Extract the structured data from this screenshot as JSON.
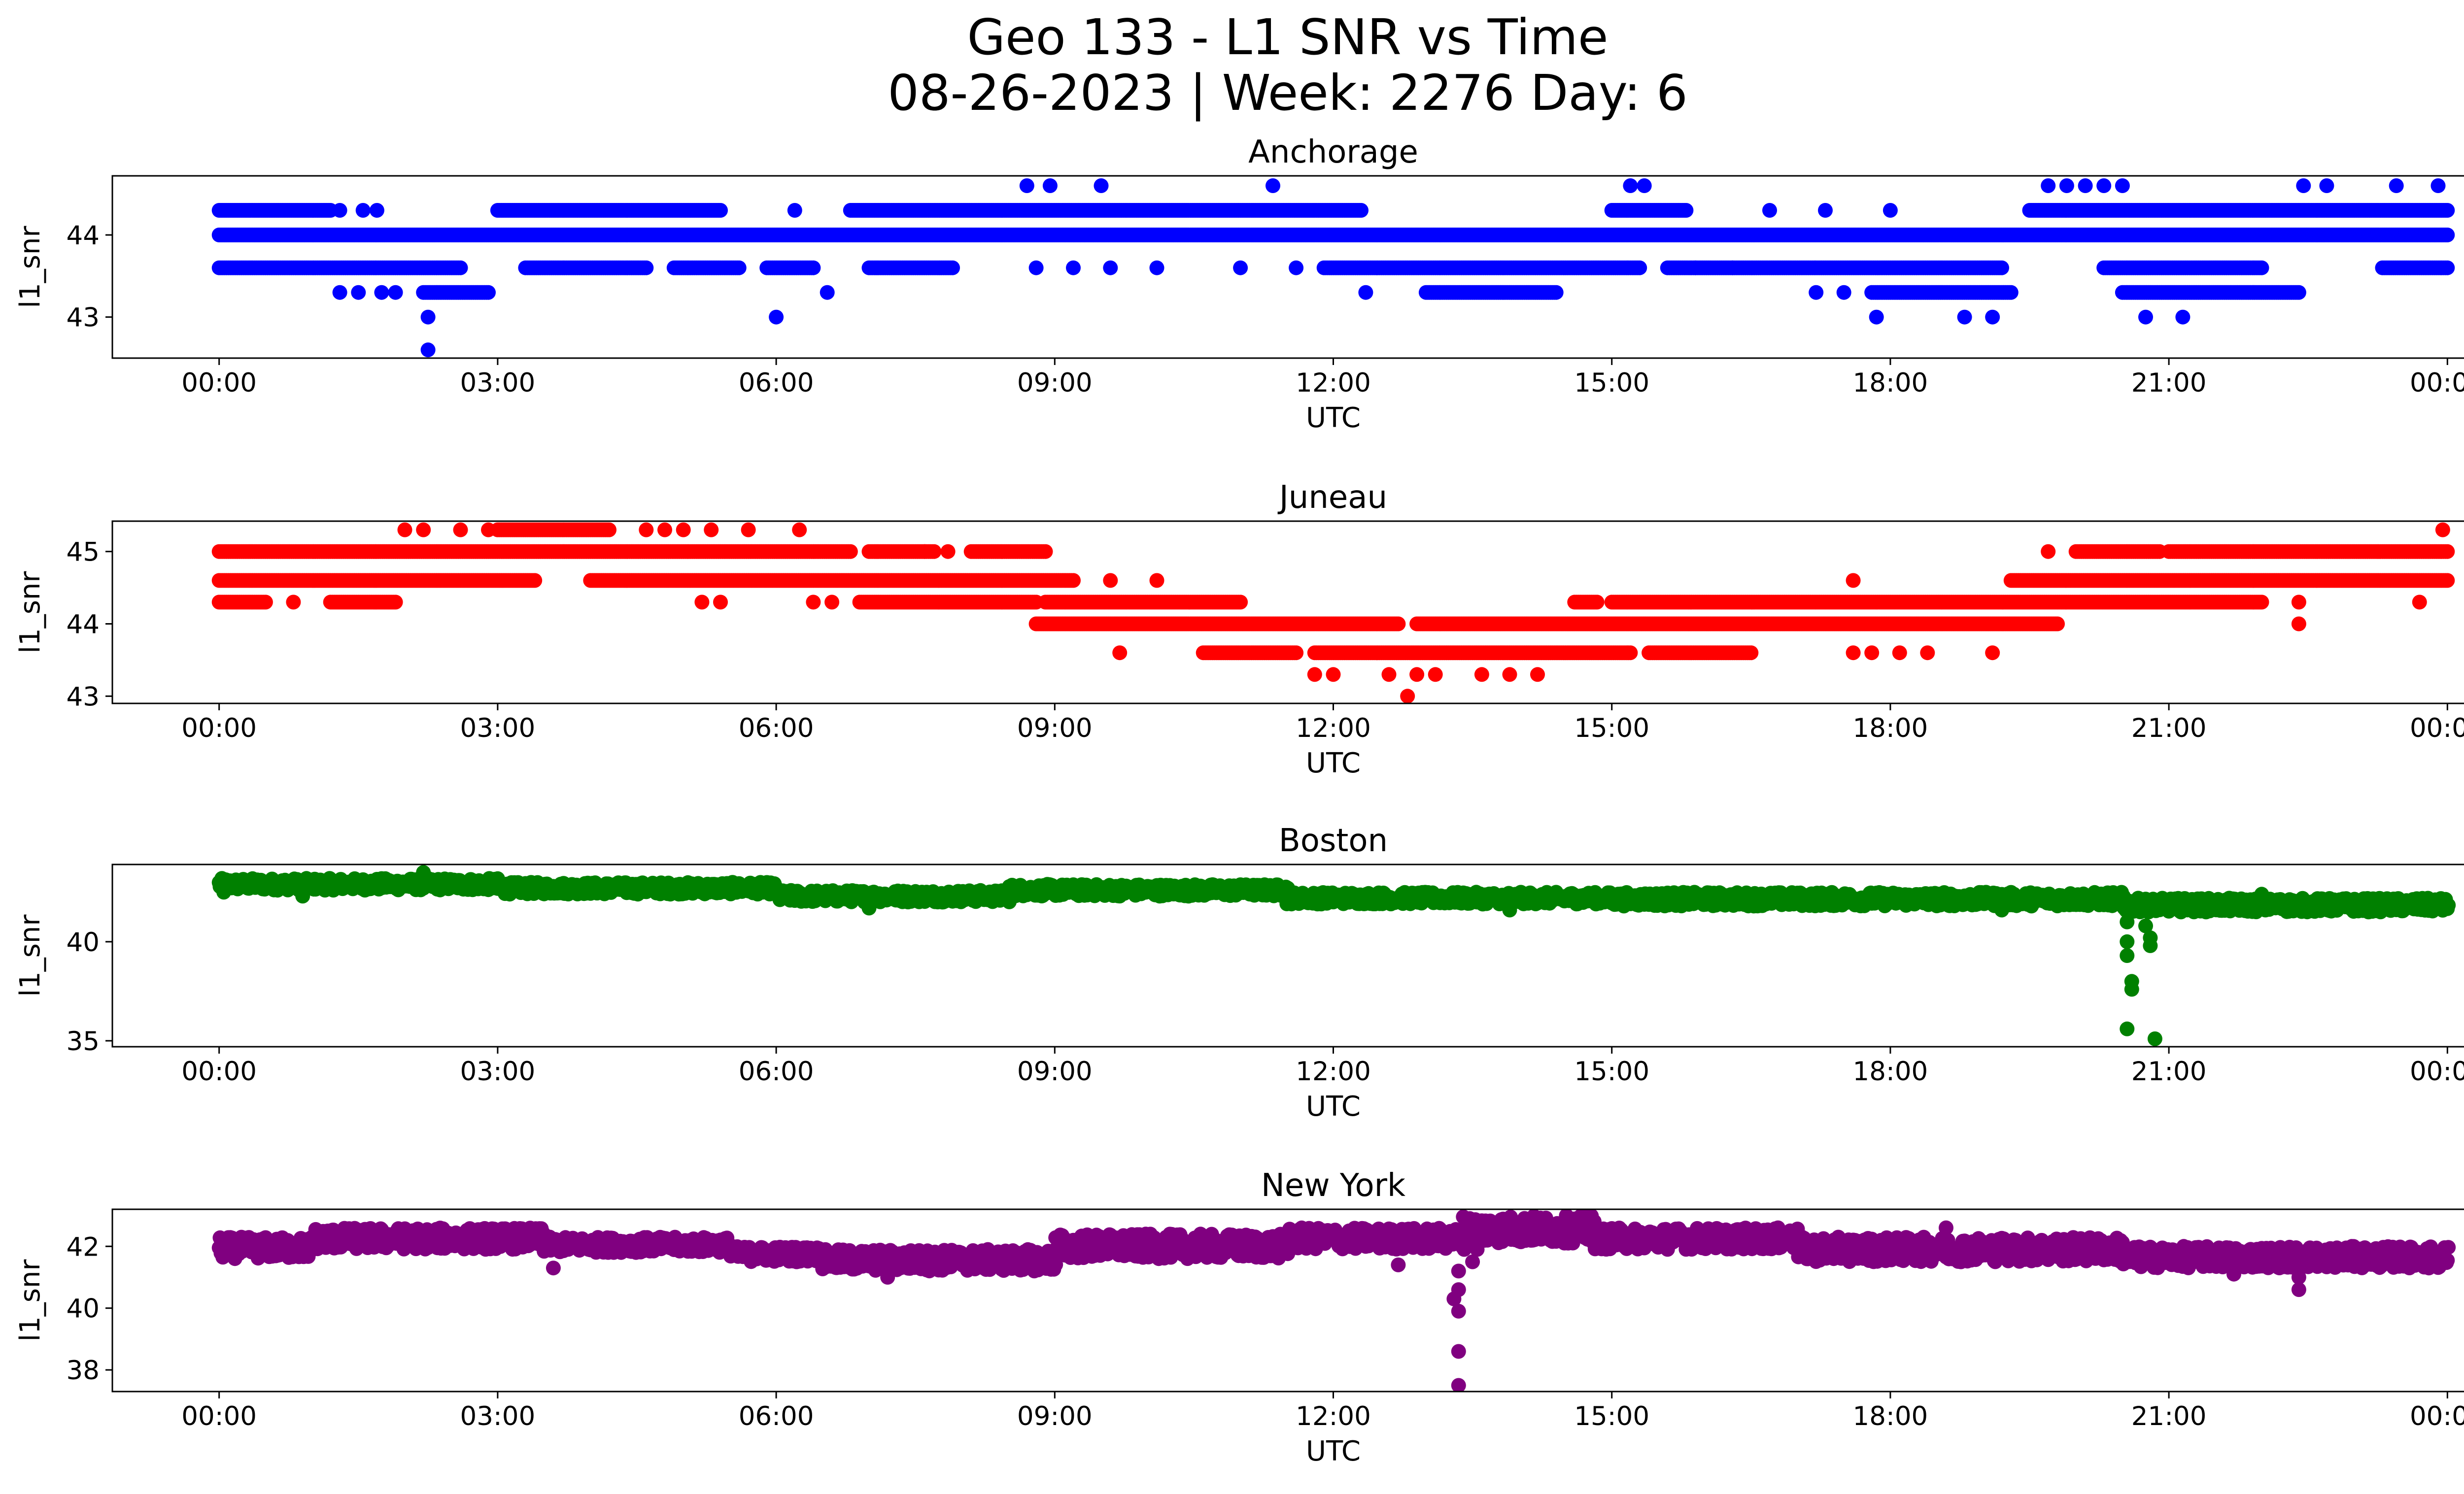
{
  "figure": {
    "title_line1": "Geo 133 - L1 SNR vs Time",
    "title_line2": "08-26-2023 | Week: 2276 Day: 6"
  },
  "chart_data": [
    {
      "type": "scatter",
      "title": "Anchorage",
      "xlabel": "UTC",
      "ylabel": "l1_snr",
      "color": "#0000ff",
      "xticks": [
        "00:00",
        "03:00",
        "06:00",
        "09:00",
        "12:00",
        "15:00",
        "18:00",
        "21:00",
        "00:00"
      ],
      "yticks": [
        43,
        44
      ],
      "ylim": [
        42.5,
        44.72
      ],
      "xlim_hours": [
        -1.15,
        25.15
      ],
      "segments": [
        {
          "y": 44.0,
          "x": [
            [
              0.0,
              24.0
            ]
          ]
        },
        {
          "y": 43.6,
          "x": [
            [
              0.0,
              2.6
            ],
            [
              3.3,
              4.6
            ],
            [
              4.9,
              5.6
            ],
            [
              5.9,
              6.4
            ],
            [
              7.0,
              7.9
            ],
            [
              11.9,
              15.3
            ],
            [
              15.6,
              19.2
            ],
            [
              20.3,
              22.0
            ],
            [
              23.3,
              24.0
            ]
          ]
        },
        {
          "y": 44.3,
          "x": [
            [
              0.0,
              1.2
            ],
            [
              3.0,
              5.4
            ],
            [
              6.8,
              12.3
            ],
            [
              15.0,
              15.8
            ],
            [
              19.5,
              24.0
            ]
          ]
        },
        {
          "y": 43.3,
          "x": [
            [
              2.2,
              2.9
            ],
            [
              13.0,
              14.4
            ],
            [
              17.8,
              19.3
            ],
            [
              20.5,
              22.4
            ]
          ]
        }
      ],
      "points": [
        {
          "x": 1.3,
          "y": 43.3
        },
        {
          "x": 1.5,
          "y": 43.3
        },
        {
          "x": 1.75,
          "y": 43.3
        },
        {
          "x": 1.9,
          "y": 43.3
        },
        {
          "x": 2.25,
          "y": 43.0
        },
        {
          "x": 2.25,
          "y": 42.6
        },
        {
          "x": 6.0,
          "y": 43.0
        },
        {
          "x": 6.55,
          "y": 43.3
        },
        {
          "x": 1.3,
          "y": 44.3
        },
        {
          "x": 1.55,
          "y": 44.3
        },
        {
          "x": 1.7,
          "y": 44.3
        },
        {
          "x": 6.2,
          "y": 44.3
        },
        {
          "x": 8.7,
          "y": 44.6
        },
        {
          "x": 8.95,
          "y": 44.6
        },
        {
          "x": 9.5,
          "y": 44.6
        },
        {
          "x": 11.35,
          "y": 44.6
        },
        {
          "x": 15.2,
          "y": 44.6
        },
        {
          "x": 15.35,
          "y": 44.6
        },
        {
          "x": 19.7,
          "y": 44.6
        },
        {
          "x": 19.9,
          "y": 44.6
        },
        {
          "x": 20.1,
          "y": 44.6
        },
        {
          "x": 20.3,
          "y": 44.6
        },
        {
          "x": 20.5,
          "y": 44.6
        },
        {
          "x": 22.45,
          "y": 44.6
        },
        {
          "x": 22.7,
          "y": 44.6
        },
        {
          "x": 23.45,
          "y": 44.6
        },
        {
          "x": 23.9,
          "y": 44.6
        },
        {
          "x": 8.8,
          "y": 43.6
        },
        {
          "x": 9.2,
          "y": 43.6
        },
        {
          "x": 9.6,
          "y": 43.6
        },
        {
          "x": 10.1,
          "y": 43.6
        },
        {
          "x": 11.0,
          "y": 43.6
        },
        {
          "x": 11.6,
          "y": 43.6
        },
        {
          "x": 12.35,
          "y": 43.3
        },
        {
          "x": 15.9,
          "y": 43.6
        },
        {
          "x": 16.3,
          "y": 43.6
        },
        {
          "x": 17.2,
          "y": 43.3
        },
        {
          "x": 17.5,
          "y": 43.3
        },
        {
          "x": 17.85,
          "y": 43.0
        },
        {
          "x": 18.8,
          "y": 43.0
        },
        {
          "x": 19.1,
          "y": 43.0
        },
        {
          "x": 18.0,
          "y": 44.3
        },
        {
          "x": 20.75,
          "y": 43.0
        },
        {
          "x": 21.15,
          "y": 43.0
        },
        {
          "x": 16.7,
          "y": 44.3
        },
        {
          "x": 17.3,
          "y": 44.3
        }
      ]
    },
    {
      "type": "scatter",
      "title": "Juneau",
      "xlabel": "UTC",
      "ylabel": "l1_snr",
      "color": "#ff0000",
      "xticks": [
        "00:00",
        "03:00",
        "06:00",
        "09:00",
        "12:00",
        "15:00",
        "18:00",
        "21:00",
        "00:00"
      ],
      "yticks": [
        43,
        44,
        45
      ],
      "ylim": [
        42.9,
        45.42
      ],
      "xlim_hours": [
        -1.15,
        25.15
      ],
      "segments": [
        {
          "y": 45.0,
          "x": [
            [
              0.0,
              6.8
            ],
            [
              7.0,
              7.7
            ],
            [
              8.1,
              8.9
            ],
            [
              20.0,
              20.9
            ],
            [
              21.0,
              24.0
            ]
          ]
        },
        {
          "y": 44.6,
          "x": [
            [
              0.0,
              3.4
            ],
            [
              4.0,
              9.2
            ],
            [
              19.3,
              24.0
            ]
          ]
        },
        {
          "y": 44.3,
          "x": [
            [
              0.0,
              0.5
            ],
            [
              1.2,
              1.9
            ],
            [
              6.9,
              8.8
            ],
            [
              8.9,
              11.0
            ],
            [
              14.6,
              14.85
            ],
            [
              15.0,
              22.0
            ]
          ]
        },
        {
          "y": 44.0,
          "x": [
            [
              8.8,
              12.7
            ],
            [
              12.9,
              19.8
            ]
          ]
        },
        {
          "y": 43.6,
          "x": [
            [
              10.6,
              11.6
            ],
            [
              11.8,
              15.2
            ],
            [
              15.4,
              16.5
            ]
          ]
        },
        {
          "y": 45.3,
          "x": [
            [
              3.0,
              4.2
            ]
          ]
        }
      ],
      "points": [
        {
          "x": 2.0,
          "y": 45.3
        },
        {
          "x": 2.2,
          "y": 45.3
        },
        {
          "x": 2.6,
          "y": 45.3
        },
        {
          "x": 2.9,
          "y": 45.3
        },
        {
          "x": 4.6,
          "y": 45.3
        },
        {
          "x": 4.8,
          "y": 45.3
        },
        {
          "x": 5.0,
          "y": 45.3
        },
        {
          "x": 5.3,
          "y": 45.3
        },
        {
          "x": 5.7,
          "y": 45.3
        },
        {
          "x": 6.25,
          "y": 45.3
        },
        {
          "x": 7.6,
          "y": 45.0
        },
        {
          "x": 7.85,
          "y": 45.0
        },
        {
          "x": 0.8,
          "y": 44.3
        },
        {
          "x": 5.2,
          "y": 44.3
        },
        {
          "x": 5.4,
          "y": 44.3
        },
        {
          "x": 6.4,
          "y": 44.3
        },
        {
          "x": 6.6,
          "y": 44.3
        },
        {
          "x": 9.6,
          "y": 44.6
        },
        {
          "x": 10.1,
          "y": 44.6
        },
        {
          "x": 9.7,
          "y": 43.6
        },
        {
          "x": 11.8,
          "y": 43.3
        },
        {
          "x": 12.0,
          "y": 43.3
        },
        {
          "x": 12.6,
          "y": 43.3
        },
        {
          "x": 12.9,
          "y": 43.3
        },
        {
          "x": 13.1,
          "y": 43.3
        },
        {
          "x": 13.6,
          "y": 43.3
        },
        {
          "x": 13.9,
          "y": 43.3
        },
        {
          "x": 14.2,
          "y": 43.3
        },
        {
          "x": 12.8,
          "y": 43.0
        },
        {
          "x": 17.6,
          "y": 44.6
        },
        {
          "x": 17.6,
          "y": 43.6
        },
        {
          "x": 17.8,
          "y": 43.6
        },
        {
          "x": 18.1,
          "y": 43.6
        },
        {
          "x": 18.4,
          "y": 43.6
        },
        {
          "x": 19.1,
          "y": 43.6
        },
        {
          "x": 19.7,
          "y": 45.0
        },
        {
          "x": 22.4,
          "y": 44.3
        },
        {
          "x": 22.4,
          "y": 44.0
        },
        {
          "x": 23.7,
          "y": 44.3
        },
        {
          "x": 23.95,
          "y": 45.3
        }
      ]
    },
    {
      "type": "scatter",
      "title": "Boston",
      "xlabel": "UTC",
      "ylabel": "l1_snr",
      "color": "#008000",
      "xticks": [
        "00:00",
        "03:00",
        "06:00",
        "09:00",
        "12:00",
        "15:00",
        "18:00",
        "21:00",
        "00:00"
      ],
      "yticks": [
        35,
        40
      ],
      "ylim": [
        34.7,
        43.9
      ],
      "xlim_hours": [
        -1.15,
        25.15
      ],
      "bands": [
        {
          "x": [
            0.0,
            3.0
          ],
          "y": [
            42.6,
            43.2
          ]
        },
        {
          "x": [
            3.0,
            6.0
          ],
          "y": [
            42.4,
            43.0
          ]
        },
        {
          "x": [
            6.0,
            8.5
          ],
          "y": [
            42.0,
            42.6
          ]
        },
        {
          "x": [
            8.5,
            11.5
          ],
          "y": [
            42.3,
            42.9
          ]
        },
        {
          "x": [
            11.5,
            15.0
          ],
          "y": [
            41.9,
            42.5
          ]
        },
        {
          "x": [
            15.0,
            20.5
          ],
          "y": [
            41.8,
            42.5
          ]
        },
        {
          "x": [
            20.5,
            24.0
          ],
          "y": [
            41.5,
            42.2
          ]
        }
      ],
      "points": [
        {
          "x": 20.55,
          "y": 41.0
        },
        {
          "x": 20.55,
          "y": 40.0
        },
        {
          "x": 20.55,
          "y": 39.3
        },
        {
          "x": 20.6,
          "y": 38.0
        },
        {
          "x": 20.6,
          "y": 37.6
        },
        {
          "x": 20.55,
          "y": 35.6
        },
        {
          "x": 20.8,
          "y": 40.2
        },
        {
          "x": 20.8,
          "y": 39.8
        },
        {
          "x": 20.85,
          "y": 35.1
        },
        {
          "x": 20.75,
          "y": 40.8
        },
        {
          "x": 2.2,
          "y": 43.5
        },
        {
          "x": 0.05,
          "y": 42.5
        },
        {
          "x": 0.9,
          "y": 42.3
        },
        {
          "x": 7.0,
          "y": 41.7
        },
        {
          "x": 13.9,
          "y": 41.6
        },
        {
          "x": 19.2,
          "y": 41.6
        },
        {
          "x": 22.0,
          "y": 42.4
        }
      ]
    },
    {
      "type": "scatter",
      "title": "New York",
      "xlabel": "UTC",
      "ylabel": "l1_snr",
      "color": "#800080",
      "xticks": [
        "00:00",
        "03:00",
        "06:00",
        "09:00",
        "12:00",
        "15:00",
        "18:00",
        "21:00",
        "00:00"
      ],
      "yticks": [
        38,
        40,
        42
      ],
      "ylim": [
        37.3,
        43.2
      ],
      "xlim_hours": [
        -1.15,
        25.15
      ],
      "bands": [
        {
          "x": [
            0.0,
            1.0
          ],
          "y": [
            41.6,
            42.3
          ]
        },
        {
          "x": [
            1.0,
            3.5
          ],
          "y": [
            41.9,
            42.6
          ]
        },
        {
          "x": [
            3.5,
            5.5
          ],
          "y": [
            41.8,
            42.3
          ]
        },
        {
          "x": [
            5.5,
            6.5
          ],
          "y": [
            41.5,
            42.0
          ]
        },
        {
          "x": [
            6.5,
            9.0
          ],
          "y": [
            41.2,
            41.9
          ]
        },
        {
          "x": [
            9.0,
            11.5
          ],
          "y": [
            41.6,
            42.4
          ]
        },
        {
          "x": [
            11.5,
            13.4
          ],
          "y": [
            41.9,
            42.6
          ]
        },
        {
          "x": [
            13.4,
            14.8
          ],
          "y": [
            42.1,
            43.0
          ]
        },
        {
          "x": [
            14.8,
            17.0
          ],
          "y": [
            41.9,
            42.6
          ]
        },
        {
          "x": [
            17.0,
            20.5
          ],
          "y": [
            41.5,
            42.3
          ]
        },
        {
          "x": [
            20.5,
            24.0
          ],
          "y": [
            41.3,
            42.0
          ]
        }
      ],
      "points": [
        {
          "x": 13.35,
          "y": 41.2
        },
        {
          "x": 13.35,
          "y": 40.6
        },
        {
          "x": 13.3,
          "y": 40.3
        },
        {
          "x": 13.35,
          "y": 39.9
        },
        {
          "x": 13.35,
          "y": 38.6
        },
        {
          "x": 13.35,
          "y": 37.5
        },
        {
          "x": 13.5,
          "y": 41.5
        },
        {
          "x": 13.55,
          "y": 41.9
        },
        {
          "x": 3.6,
          "y": 41.3
        },
        {
          "x": 7.2,
          "y": 41.0
        },
        {
          "x": 12.7,
          "y": 41.4
        },
        {
          "x": 14.7,
          "y": 43.0
        },
        {
          "x": 18.6,
          "y": 42.6
        },
        {
          "x": 22.4,
          "y": 40.6
        },
        {
          "x": 22.4,
          "y": 41.0
        },
        {
          "x": 21.7,
          "y": 41.1
        },
        {
          "x": 23.8,
          "y": 41.3
        }
      ]
    }
  ]
}
